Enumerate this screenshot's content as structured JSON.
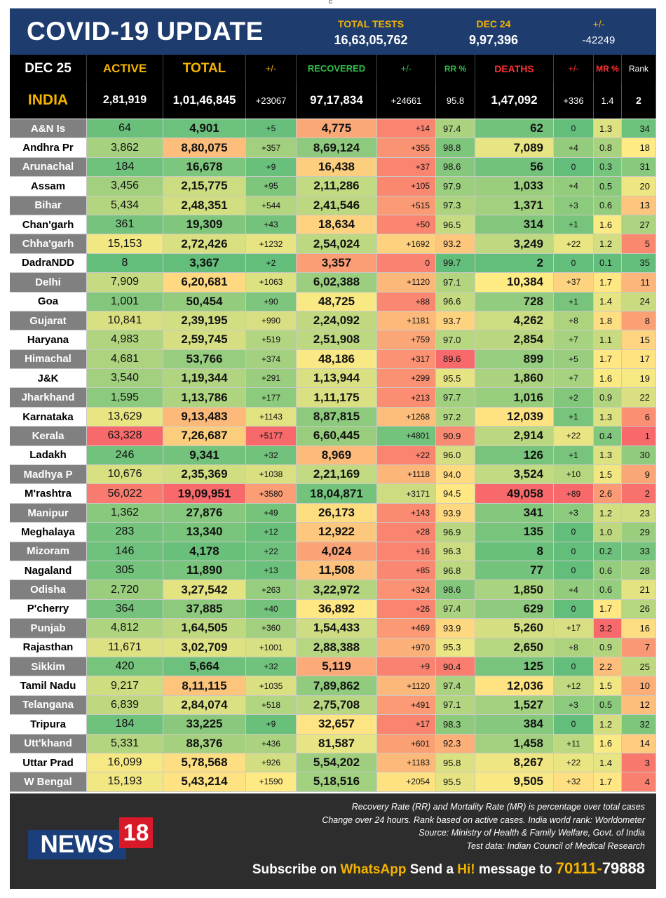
{
  "top_mark": "c",
  "header": {
    "title": "COVID-19 UPDATE",
    "total_tests_label": "TOTAL TESTS",
    "total_tests_value": "16,63,05,762",
    "date_label": "DEC 24",
    "date_value": "9,97,396",
    "change_label": "+/-",
    "change_value": "-42249"
  },
  "columns": {
    "date": "DEC 25",
    "active": "ACTIVE",
    "total": "TOTAL",
    "total_chg": "+/-",
    "recovered": "RECOVERED",
    "rec_chg": "+/-",
    "rr": "RR %",
    "deaths": "DEATHS",
    "deaths_chg": "+/-",
    "mr": "MR %",
    "rank": "Rank"
  },
  "india": {
    "name": "INDIA",
    "active": "2,81,919",
    "total": "1,01,46,845",
    "total_chg": "+23067",
    "recovered": "97,17,834",
    "rec_chg": "+24661",
    "rr": "95.8",
    "deaths": "1,47,092",
    "deaths_chg": "+336",
    "mr": "1.4",
    "rank": "2"
  },
  "colors": {
    "header_bg": "#1e3d6e",
    "accent_yellow": "#f5b400",
    "recovered_green": "#2fbf4a",
    "deaths_red": "#ff3030",
    "green": "#63be7b",
    "yellow": "#ffeb84",
    "orange": "#fbaa77",
    "red": "#f8696b",
    "footer_bg": "#2d2d2d"
  },
  "states": [
    {
      "name": "A&N Is",
      "active": "64",
      "total": "4,901",
      "total_chg": "+5",
      "recovered": "4,775",
      "rec_chg": "+14",
      "rr": "97.4",
      "deaths": "62",
      "deaths_chg": "0",
      "mr": "1.3",
      "rank": "34"
    },
    {
      "name": "Andhra Pr",
      "active": "3,862",
      "total": "8,80,075",
      "total_chg": "+357",
      "recovered": "8,69,124",
      "rec_chg": "+355",
      "rr": "98.8",
      "deaths": "7,089",
      "deaths_chg": "+4",
      "mr": "0.8",
      "rank": "18"
    },
    {
      "name": "Arunachal",
      "active": "184",
      "total": "16,678",
      "total_chg": "+9",
      "recovered": "16,438",
      "rec_chg": "+37",
      "rr": "98.6",
      "deaths": "56",
      "deaths_chg": "0",
      "mr": "0.3",
      "rank": "31"
    },
    {
      "name": "Assam",
      "active": "3,456",
      "total": "2,15,775",
      "total_chg": "+95",
      "recovered": "2,11,286",
      "rec_chg": "+105",
      "rr": "97.9",
      "deaths": "1,033",
      "deaths_chg": "+4",
      "mr": "0.5",
      "rank": "20"
    },
    {
      "name": "Bihar",
      "active": "5,434",
      "total": "2,48,351",
      "total_chg": "+544",
      "recovered": "2,41,546",
      "rec_chg": "+515",
      "rr": "97.3",
      "deaths": "1,371",
      "deaths_chg": "+3",
      "mr": "0.6",
      "rank": "13"
    },
    {
      "name": "Chan'garh",
      "active": "361",
      "total": "19,309",
      "total_chg": "+43",
      "recovered": "18,634",
      "rec_chg": "+50",
      "rr": "96.5",
      "deaths": "314",
      "deaths_chg": "+1",
      "mr": "1.6",
      "rank": "27"
    },
    {
      "name": "Chha'garh",
      "active": "15,153",
      "total": "2,72,426",
      "total_chg": "+1232",
      "recovered": "2,54,024",
      "rec_chg": "+1692",
      "rr": "93.2",
      "deaths": "3,249",
      "deaths_chg": "+22",
      "mr": "1.2",
      "rank": "5"
    },
    {
      "name": "DadraNDD",
      "active": "8",
      "total": "3,367",
      "total_chg": "+2",
      "recovered": "3,357",
      "rec_chg": "0",
      "rr": "99.7",
      "deaths": "2",
      "deaths_chg": "0",
      "mr": "0.1",
      "rank": "35"
    },
    {
      "name": "Delhi",
      "active": "7,909",
      "total": "6,20,681",
      "total_chg": "+1063",
      "recovered": "6,02,388",
      "rec_chg": "+1120",
      "rr": "97.1",
      "deaths": "10,384",
      "deaths_chg": "+37",
      "mr": "1.7",
      "rank": "11"
    },
    {
      "name": "Goa",
      "active": "1,001",
      "total": "50,454",
      "total_chg": "+90",
      "recovered": "48,725",
      "rec_chg": "+88",
      "rr": "96.6",
      "deaths": "728",
      "deaths_chg": "+1",
      "mr": "1.4",
      "rank": "24"
    },
    {
      "name": "Gujarat",
      "active": "10,841",
      "total": "2,39,195",
      "total_chg": "+990",
      "recovered": "2,24,092",
      "rec_chg": "+1181",
      "rr": "93.7",
      "deaths": "4,262",
      "deaths_chg": "+8",
      "mr": "1.8",
      "rank": "8"
    },
    {
      "name": "Haryana",
      "active": "4,983",
      "total": "2,59,745",
      "total_chg": "+519",
      "recovered": "2,51,908",
      "rec_chg": "+759",
      "rr": "97.0",
      "deaths": "2,854",
      "deaths_chg": "+7",
      "mr": "1.1",
      "rank": "15"
    },
    {
      "name": "Himachal",
      "active": "4,681",
      "total": "53,766",
      "total_chg": "+374",
      "recovered": "48,186",
      "rec_chg": "+317",
      "rr": "89.6",
      "deaths": "899",
      "deaths_chg": "+5",
      "mr": "1.7",
      "rank": "17"
    },
    {
      "name": "J&K",
      "active": "3,540",
      "total": "1,19,344",
      "total_chg": "+291",
      "recovered": "1,13,944",
      "rec_chg": "+299",
      "rr": "95.5",
      "deaths": "1,860",
      "deaths_chg": "+7",
      "mr": "1.6",
      "rank": "19"
    },
    {
      "name": "Jharkhand",
      "active": "1,595",
      "total": "1,13,786",
      "total_chg": "+177",
      "recovered": "1,11,175",
      "rec_chg": "+213",
      "rr": "97.7",
      "deaths": "1,016",
      "deaths_chg": "+2",
      "mr": "0.9",
      "rank": "22"
    },
    {
      "name": "Karnataka",
      "active": "13,629",
      "total": "9,13,483",
      "total_chg": "+1143",
      "recovered": "8,87,815",
      "rec_chg": "+1268",
      "rr": "97.2",
      "deaths": "12,039",
      "deaths_chg": "+1",
      "mr": "1.3",
      "rank": "6"
    },
    {
      "name": "Kerala",
      "active": "63,328",
      "total": "7,26,687",
      "total_chg": "+5177",
      "recovered": "6,60,445",
      "rec_chg": "+4801",
      "rr": "90.9",
      "deaths": "2,914",
      "deaths_chg": "+22",
      "mr": "0.4",
      "rank": "1"
    },
    {
      "name": "Ladakh",
      "active": "246",
      "total": "9,341",
      "total_chg": "+32",
      "recovered": "8,969",
      "rec_chg": "+22",
      "rr": "96.0",
      "deaths": "126",
      "deaths_chg": "+1",
      "mr": "1.3",
      "rank": "30"
    },
    {
      "name": "Madhya P",
      "active": "10,676",
      "total": "2,35,369",
      "total_chg": "+1038",
      "recovered": "2,21,169",
      "rec_chg": "+1118",
      "rr": "94.0",
      "deaths": "3,524",
      "deaths_chg": "+10",
      "mr": "1.5",
      "rank": "9"
    },
    {
      "name": "M'rashtra",
      "active": "56,022",
      "total": "19,09,951",
      "total_chg": "+3580",
      "recovered": "18,04,871",
      "rec_chg": "+3171",
      "rr": "94.5",
      "deaths": "49,058",
      "deaths_chg": "+89",
      "mr": "2.6",
      "rank": "2"
    },
    {
      "name": "Manipur",
      "active": "1,362",
      "total": "27,876",
      "total_chg": "+49",
      "recovered": "26,173",
      "rec_chg": "+143",
      "rr": "93.9",
      "deaths": "341",
      "deaths_chg": "+3",
      "mr": "1.2",
      "rank": "23"
    },
    {
      "name": "Meghalaya",
      "active": "283",
      "total": "13,340",
      "total_chg": "+12",
      "recovered": "12,922",
      "rec_chg": "+28",
      "rr": "96.9",
      "deaths": "135",
      "deaths_chg": "0",
      "mr": "1.0",
      "rank": "29"
    },
    {
      "name": "Mizoram",
      "active": "146",
      "total": "4,178",
      "total_chg": "+22",
      "recovered": "4,024",
      "rec_chg": "+16",
      "rr": "96.3",
      "deaths": "8",
      "deaths_chg": "0",
      "mr": "0.2",
      "rank": "33"
    },
    {
      "name": "Nagaland",
      "active": "305",
      "total": "11,890",
      "total_chg": "+13",
      "recovered": "11,508",
      "rec_chg": "+85",
      "rr": "96.8",
      "deaths": "77",
      "deaths_chg": "0",
      "mr": "0.6",
      "rank": "28"
    },
    {
      "name": "Odisha",
      "active": "2,720",
      "total": "3,27,542",
      "total_chg": "+263",
      "recovered": "3,22,972",
      "rec_chg": "+324",
      "rr": "98.6",
      "deaths": "1,850",
      "deaths_chg": "+4",
      "mr": "0.6",
      "rank": "21"
    },
    {
      "name": "P'cherry",
      "active": "364",
      "total": "37,885",
      "total_chg": "+40",
      "recovered": "36,892",
      "rec_chg": "+26",
      "rr": "97.4",
      "deaths": "629",
      "deaths_chg": "0",
      "mr": "1.7",
      "rank": "26"
    },
    {
      "name": "Punjab",
      "active": "4,812",
      "total": "1,64,505",
      "total_chg": "+360",
      "recovered": "1,54,433",
      "rec_chg": "+469",
      "rr": "93.9",
      "deaths": "5,260",
      "deaths_chg": "+17",
      "mr": "3.2",
      "rank": "16"
    },
    {
      "name": "Rajasthan",
      "active": "11,671",
      "total": "3,02,709",
      "total_chg": "+1001",
      "recovered": "2,88,388",
      "rec_chg": "+970",
      "rr": "95.3",
      "deaths": "2,650",
      "deaths_chg": "+8",
      "mr": "0.9",
      "rank": "7"
    },
    {
      "name": "Sikkim",
      "active": "420",
      "total": "5,664",
      "total_chg": "+32",
      "recovered": "5,119",
      "rec_chg": "+9",
      "rr": "90.4",
      "deaths": "125",
      "deaths_chg": "0",
      "mr": "2.2",
      "rank": "25"
    },
    {
      "name": "Tamil Nadu",
      "active": "9,217",
      "total": "8,11,115",
      "total_chg": "+1035",
      "recovered": "7,89,862",
      "rec_chg": "+1120",
      "rr": "97.4",
      "deaths": "12,036",
      "deaths_chg": "+12",
      "mr": "1.5",
      "rank": "10"
    },
    {
      "name": "Telangana",
      "active": "6,839",
      "total": "2,84,074",
      "total_chg": "+518",
      "recovered": "2,75,708",
      "rec_chg": "+491",
      "rr": "97.1",
      "deaths": "1,527",
      "deaths_chg": "+3",
      "mr": "0.5",
      "rank": "12"
    },
    {
      "name": "Tripura",
      "active": "184",
      "total": "33,225",
      "total_chg": "+9",
      "recovered": "32,657",
      "rec_chg": "+17",
      "rr": "98.3",
      "deaths": "384",
      "deaths_chg": "0",
      "mr": "1.2",
      "rank": "32"
    },
    {
      "name": "Utt'khand",
      "active": "5,331",
      "total": "88,376",
      "total_chg": "+436",
      "recovered": "81,587",
      "rec_chg": "+601",
      "rr": "92.3",
      "deaths": "1,458",
      "deaths_chg": "+11",
      "mr": "1.6",
      "rank": "14"
    },
    {
      "name": "Uttar Prad",
      "active": "16,099",
      "total": "5,78,568",
      "total_chg": "+926",
      "recovered": "5,54,202",
      "rec_chg": "+1183",
      "rr": "95.8",
      "deaths": "8,267",
      "deaths_chg": "+22",
      "mr": "1.4",
      "rank": "3"
    },
    {
      "name": "W Bengal",
      "active": "15,193",
      "total": "5,43,214",
      "total_chg": "+1590",
      "recovered": "5,18,516",
      "rec_chg": "+2054",
      "rr": "95.5",
      "deaths": "9,505",
      "deaths_chg": "+32",
      "mr": "1.7",
      "rank": "4"
    }
  ],
  "footer": {
    "note1": "Recovery Rate (RR) and Mortality Rate (MR) is percentage over total cases",
    "note2": "Change over 24 hours. Rank based on active cases. India world rank: Worldometer",
    "note3": "Source: Ministry of Health & Family Welfare, Govt. of India",
    "note4": "Test data: Indian Council of Medical Research",
    "logo_news": "NEWS",
    "logo_18": "18",
    "subscribe_a": "Subscribe on ",
    "subscribe_whatsapp": "WhatsApp",
    "subscribe_b": " Send a ",
    "subscribe_hi": "Hi!",
    "subscribe_c": " message to ",
    "subscribe_num1": "70111-",
    "subscribe_num2": "79888"
  }
}
